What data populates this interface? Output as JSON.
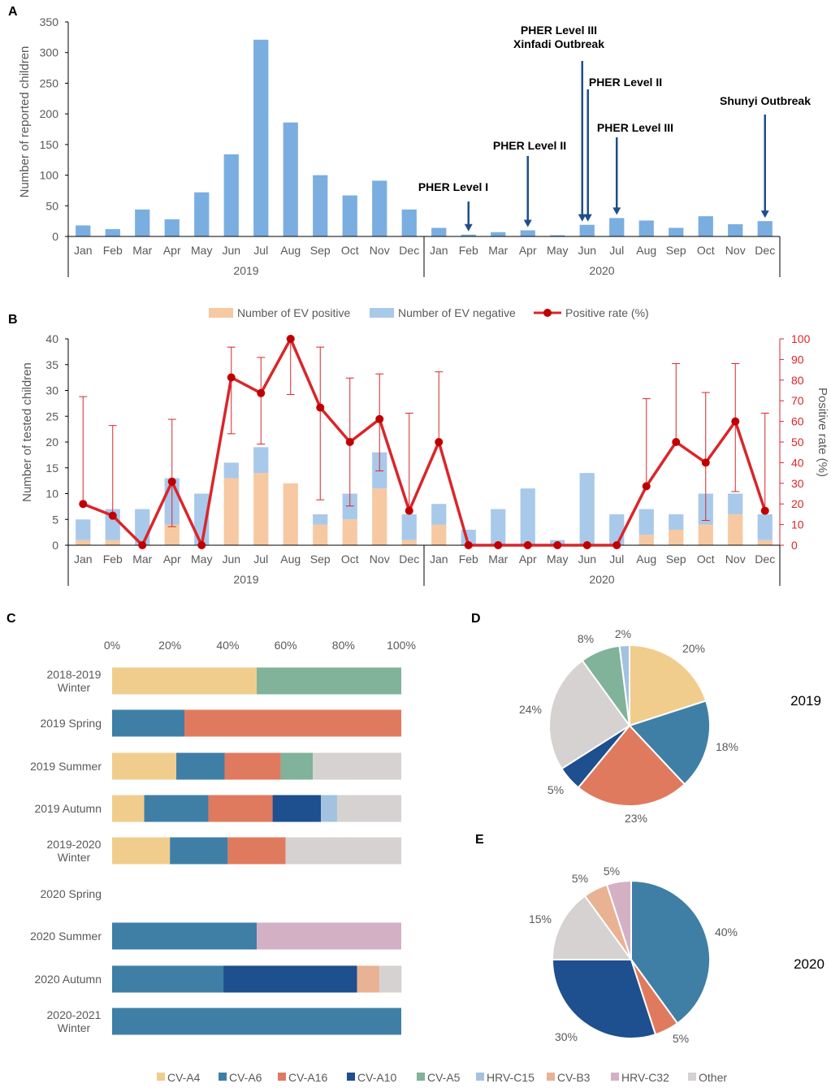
{
  "colors": {
    "barA": "#7aaee0",
    "positive": "#f6c9a2",
    "negative": "#a9c9eb",
    "rate": "#d9262b",
    "arrow": "#1f4e8c",
    "CV-A4": "#f1cd8d",
    "CV-A6": "#3f7fa6",
    "CV-A16": "#e07a5f",
    "CV-A10": "#1e4f8e",
    "CV-A5": "#80b39a",
    "HRV-C15": "#a3c2e0",
    "CV-B3": "#e8b293",
    "HRV-C32": "#d4b0c5",
    "Other": "#d6d2d2"
  },
  "chart_data": [
    {
      "panel": "A",
      "type": "bar",
      "ylabel": "Number of reported children",
      "ylim": [
        0,
        350
      ],
      "yticks": [
        0,
        50,
        100,
        150,
        200,
        250,
        300,
        350
      ],
      "categories": [
        "Jan",
        "Feb",
        "Mar",
        "Apr",
        "May",
        "Jun",
        "Jul",
        "Aug",
        "Sep",
        "Oct",
        "Nov",
        "Dec",
        "Jan",
        "Feb",
        "Mar",
        "Apr",
        "May",
        "Jun",
        "Jul",
        "Aug",
        "Sep",
        "Oct",
        "Nov",
        "Dec"
      ],
      "year_groups": [
        "2019",
        "2020"
      ],
      "values": [
        18,
        12,
        44,
        28,
        72,
        134,
        321,
        186,
        100,
        67,
        91,
        44,
        14,
        3,
        7,
        10,
        2,
        19,
        30,
        26,
        14,
        33,
        20,
        25
      ],
      "annotations": [
        {
          "month_index": 13,
          "lines": [
            "PHER Level I"
          ]
        },
        {
          "month_index": 15,
          "lines": [
            "PHER Level II"
          ]
        },
        {
          "month_index": 17,
          "lines": [
            "PHER Level III",
            "Xinfadi Outbreak"
          ]
        },
        {
          "month_index": 17,
          "lines": [
            "PHER Level II"
          ]
        },
        {
          "month_index": 18,
          "lines": [
            "PHER Level III"
          ]
        },
        {
          "month_index": 23,
          "lines": [
            "Shunyi Outbreak"
          ]
        }
      ]
    },
    {
      "panel": "B",
      "type": "bar+line",
      "ylabel": "Number of tested children",
      "y2label": "Positive rate (%)",
      "ylim": [
        0,
        40
      ],
      "yticks": [
        0,
        5,
        10,
        15,
        20,
        25,
        30,
        35,
        40
      ],
      "y2lim": [
        0,
        100
      ],
      "y2ticks": [
        0,
        10,
        20,
        30,
        40,
        50,
        60,
        70,
        80,
        90,
        100
      ],
      "legend": [
        "Number of EV positive",
        "Number of EV negative",
        "Positive rate (%)"
      ],
      "categories": [
        "Jan",
        "Feb",
        "Mar",
        "Apr",
        "May",
        "Jun",
        "Jul",
        "Aug",
        "Sep",
        "Oct",
        "Nov",
        "Dec",
        "Jan",
        "Feb",
        "Mar",
        "Apr",
        "May",
        "Jun",
        "Jul",
        "Aug",
        "Sep",
        "Oct",
        "Nov",
        "Dec"
      ],
      "year_groups": [
        "2019",
        "2020"
      ],
      "series": [
        {
          "name": "Number of EV positive",
          "values": [
            1,
            1,
            0,
            4,
            0,
            13,
            14,
            12,
            4,
            5,
            11,
            1,
            4,
            0,
            0,
            0,
            0,
            0,
            0,
            2,
            3,
            4,
            6,
            1
          ]
        },
        {
          "name": "Number of EV negative",
          "values": [
            4,
            6,
            7,
            9,
            10,
            3,
            5,
            0,
            2,
            5,
            7,
            5,
            4,
            3,
            7,
            11,
            1,
            14,
            6,
            5,
            3,
            6,
            4,
            5
          ]
        },
        {
          "name": "Positive rate (%)",
          "values": [
            20,
            14.3,
            0,
            30.8,
            0,
            81.3,
            73.7,
            100,
            66.7,
            50,
            61.1,
            16.7,
            50,
            0,
            0,
            0,
            0,
            0,
            0,
            28.6,
            50,
            40,
            60,
            16.7
          ]
        }
      ],
      "ci_lower": [
        null,
        null,
        null,
        9,
        null,
        54,
        49,
        73,
        22,
        19,
        36,
        null,
        null,
        null,
        null,
        null,
        null,
        null,
        null,
        null,
        null,
        12,
        26,
        null
      ],
      "ci_upper": [
        72,
        58,
        null,
        61,
        null,
        96,
        91,
        100,
        96,
        81,
        83,
        64,
        84,
        null,
        null,
        null,
        null,
        null,
        null,
        71,
        88,
        74,
        88,
        64
      ]
    },
    {
      "panel": "C",
      "type": "stacked-bar-horizontal",
      "xticks": [
        "0%",
        "20%",
        "40%",
        "60%",
        "80%",
        "100%"
      ],
      "legend": [
        "CV-A4",
        "CV-A6",
        "CV-A16",
        "CV-A10",
        "CV-A5",
        "HRV-C15",
        "CV-B3",
        "HRV-C32",
        "Other"
      ],
      "rows": [
        {
          "label": [
            "2018-2019",
            "Winter"
          ],
          "segments": [
            {
              "name": "CV-A4",
              "value": 50
            },
            {
              "name": "CV-A5",
              "value": 50
            }
          ]
        },
        {
          "label": [
            "2019 Spring"
          ],
          "segments": [
            {
              "name": "CV-A6",
              "value": 25
            },
            {
              "name": "CV-A16",
              "value": 75
            }
          ]
        },
        {
          "label": [
            "2019 Summer"
          ],
          "segments": [
            {
              "name": "CV-A4",
              "value": 22.2
            },
            {
              "name": "CV-A6",
              "value": 16.7
            },
            {
              "name": "CV-A16",
              "value": 19.4
            },
            {
              "name": "CV-A5",
              "value": 11.1
            },
            {
              "name": "Other",
              "value": 30.6
            }
          ]
        },
        {
          "label": [
            "2019 Autumn"
          ],
          "segments": [
            {
              "name": "CV-A4",
              "value": 11.1
            },
            {
              "name": "CV-A6",
              "value": 22.2
            },
            {
              "name": "CV-A16",
              "value": 22.2
            },
            {
              "name": "CV-A10",
              "value": 16.7
            },
            {
              "name": "HRV-C15",
              "value": 5.6
            },
            {
              "name": "Other",
              "value": 22.2
            }
          ]
        },
        {
          "label": [
            "2019-2020",
            "Winter"
          ],
          "segments": [
            {
              "name": "CV-A4",
              "value": 20
            },
            {
              "name": "CV-A6",
              "value": 20
            },
            {
              "name": "CV-A16",
              "value": 20
            },
            {
              "name": "Other",
              "value": 40
            }
          ]
        },
        {
          "label": [
            "2020 Spring"
          ],
          "segments": []
        },
        {
          "label": [
            "2020 Summer"
          ],
          "segments": [
            {
              "name": "CV-A6",
              "value": 50
            },
            {
              "name": "HRV-C32",
              "value": 50
            }
          ]
        },
        {
          "label": [
            "2020 Autumn"
          ],
          "segments": [
            {
              "name": "CV-A6",
              "value": 38.5
            },
            {
              "name": "CV-A10",
              "value": 46.2
            },
            {
              "name": "CV-B3",
              "value": 7.7
            },
            {
              "name": "Other",
              "value": 7.7
            }
          ]
        },
        {
          "label": [
            "2020-2021",
            "Winter"
          ],
          "segments": [
            {
              "name": "CV-A6",
              "value": 100
            }
          ]
        }
      ]
    },
    {
      "panel": "D",
      "type": "pie",
      "title": "2019",
      "slices": [
        {
          "name": "CV-A4",
          "value": 20,
          "label": "20%"
        },
        {
          "name": "CV-A6",
          "value": 18,
          "label": "18%"
        },
        {
          "name": "CV-A16",
          "value": 23,
          "label": "23%"
        },
        {
          "name": "CV-A10",
          "value": 5,
          "label": "5%"
        },
        {
          "name": "Other",
          "value": 24,
          "label": "24%"
        },
        {
          "name": "CV-A5",
          "value": 8,
          "label": "8%"
        },
        {
          "name": "HRV-C15",
          "value": 2,
          "label": "2%"
        }
      ]
    },
    {
      "panel": "E",
      "type": "pie",
      "title": "2020",
      "slices": [
        {
          "name": "CV-A6",
          "value": 40,
          "label": "40%"
        },
        {
          "name": "CV-A16",
          "value": 5,
          "label": "5%"
        },
        {
          "name": "CV-A10",
          "value": 30,
          "label": "30%"
        },
        {
          "name": "Other",
          "value": 15,
          "label": "15%"
        },
        {
          "name": "CV-B3",
          "value": 5,
          "label": "5%"
        },
        {
          "name": "HRV-C32",
          "value": 5,
          "label": "5%"
        }
      ]
    }
  ]
}
